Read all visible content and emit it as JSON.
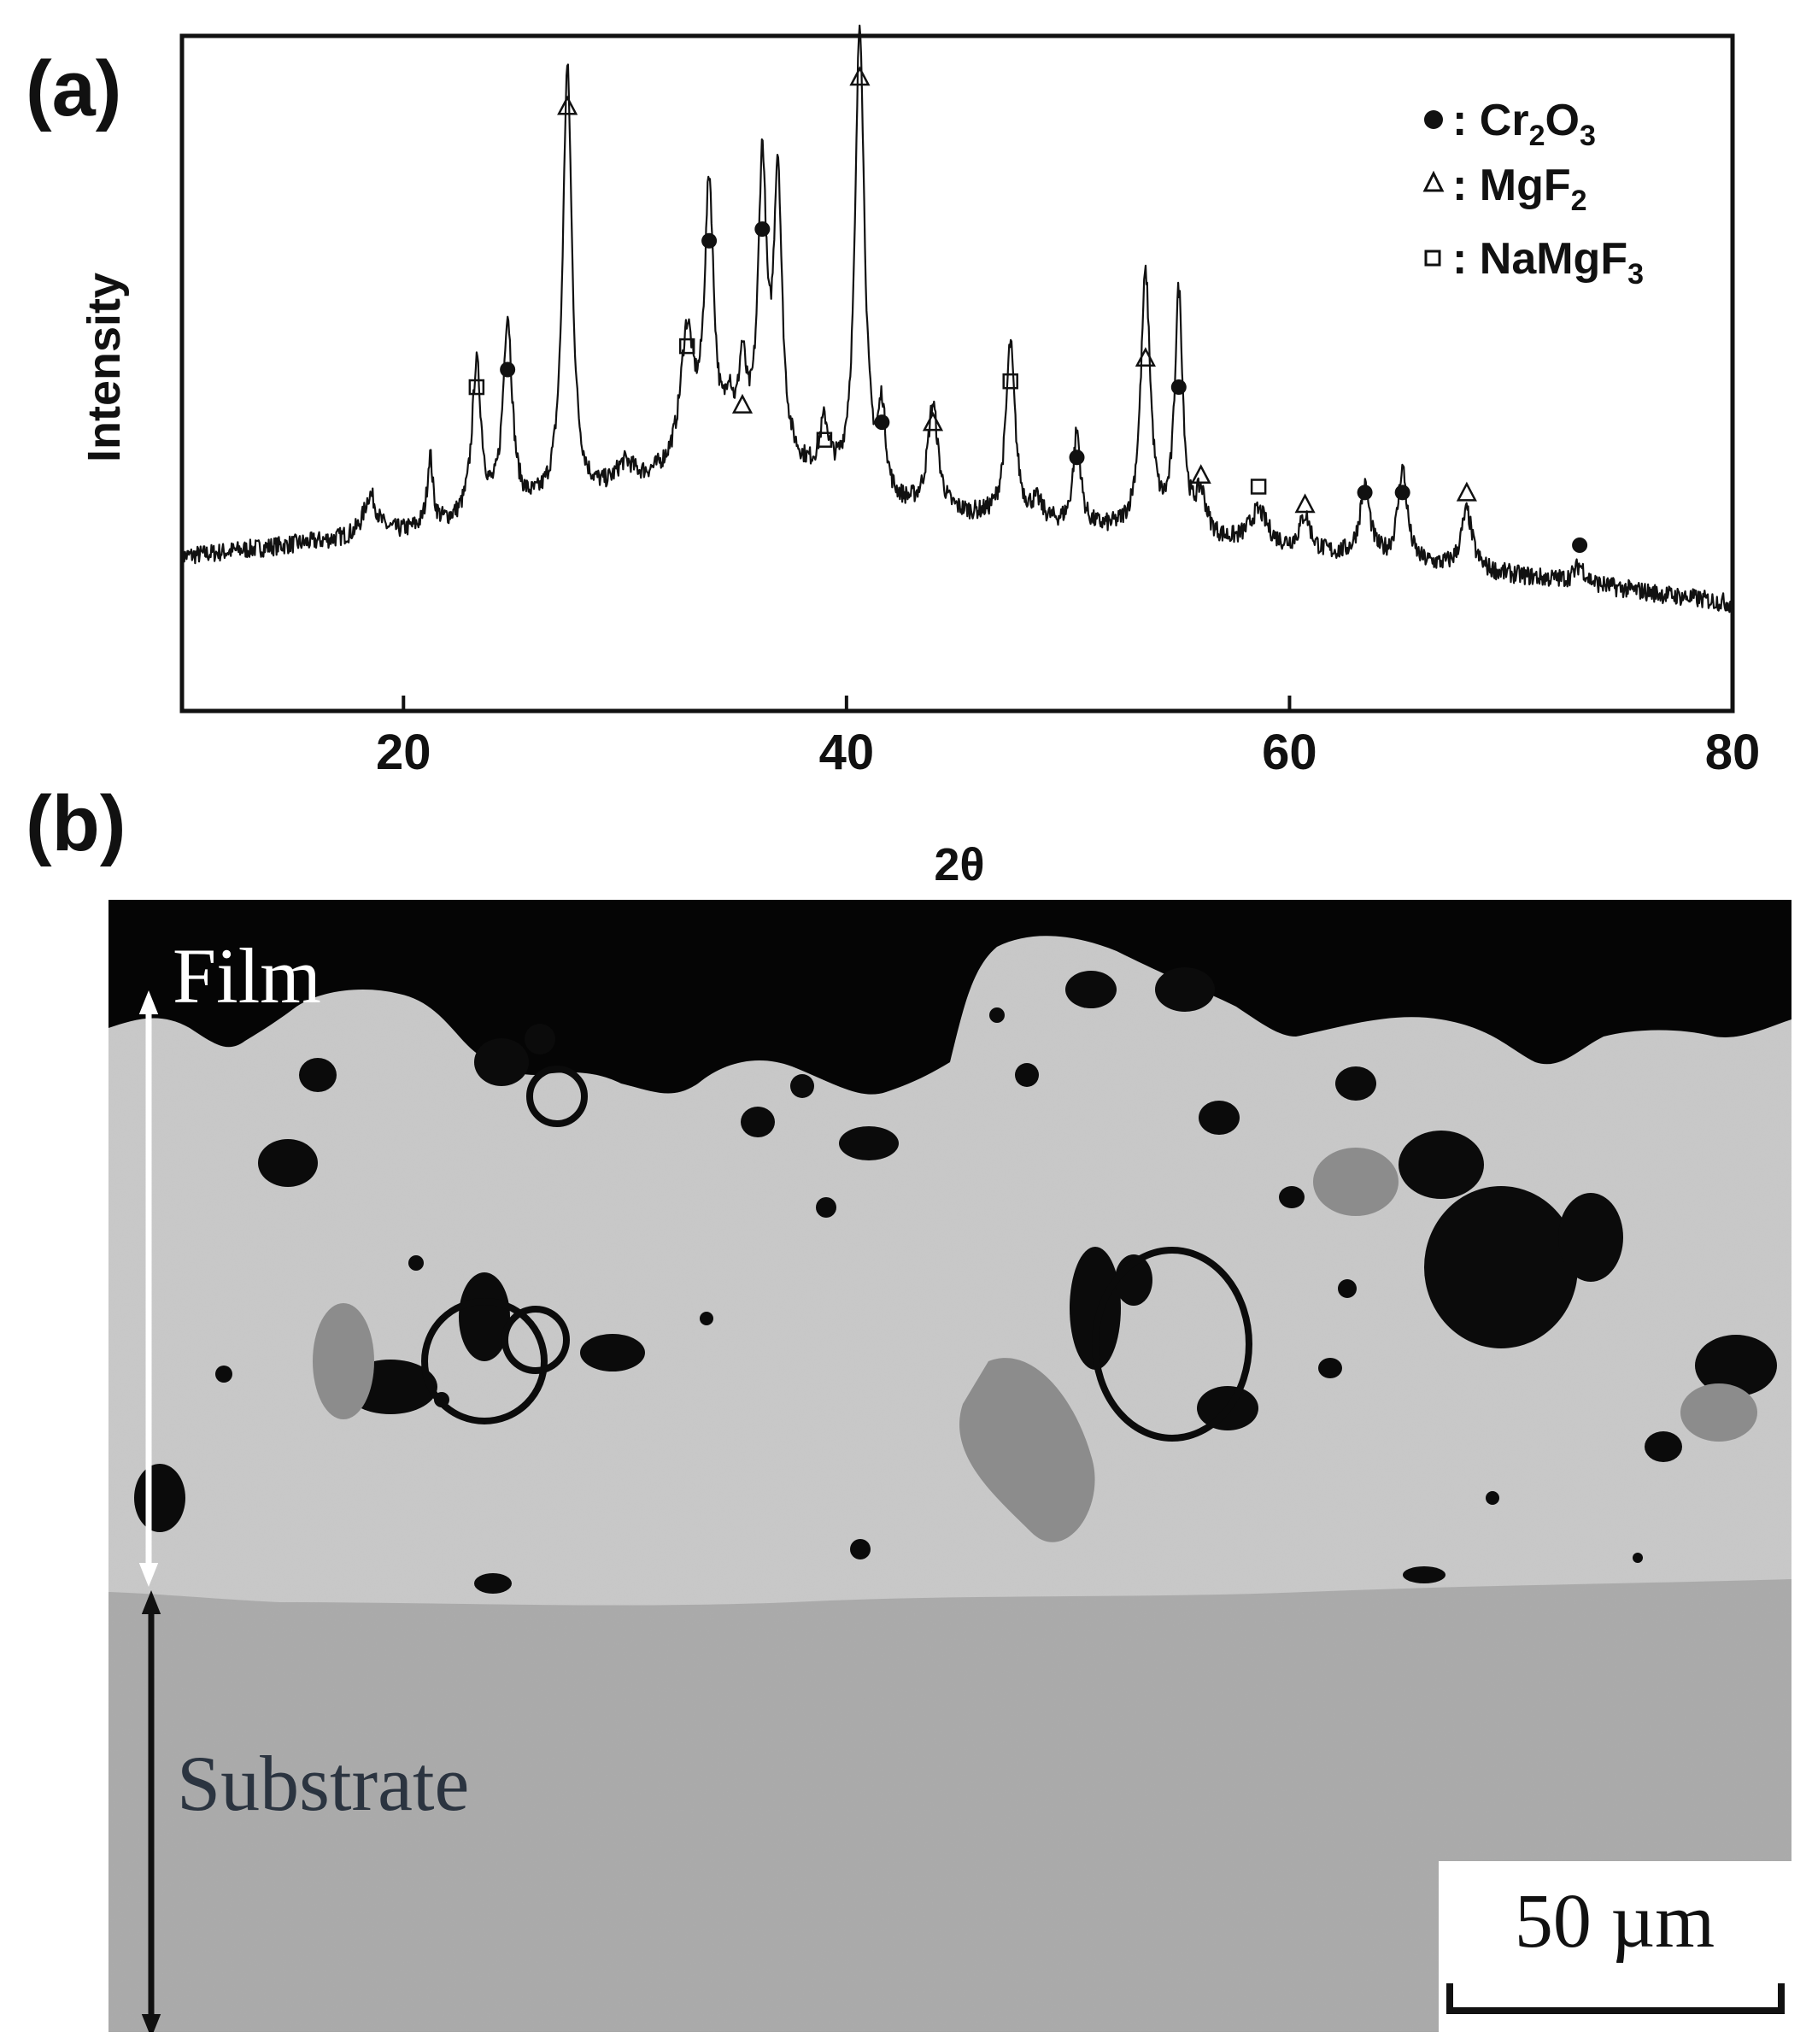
{
  "panels": {
    "a_label": "(a)",
    "b_label": "(b)"
  },
  "chart_data": {
    "type": "line",
    "title": "",
    "xlabel": "2θ",
    "ylabel": "Intensity",
    "xlim": [
      10,
      80
    ],
    "xticks": [
      20,
      40,
      60,
      80
    ],
    "ylim": [
      0,
      100
    ],
    "grid": false,
    "legend_position": "top-right",
    "legend": [
      {
        "marker": "circle-filled",
        "label_main": "Cr",
        "label_sub1": "2",
        "label_mid": "O",
        "label_sub2": "3",
        "prefix": ": "
      },
      {
        "marker": "triangle-open",
        "label_main": "MgF",
        "label_sub1": "2",
        "label_mid": "",
        "label_sub2": "",
        "prefix": ": "
      },
      {
        "marker": "square-open",
        "label_main": "NaMgF",
        "label_sub1": "3",
        "label_mid": "",
        "label_sub2": "",
        "prefix": ": "
      }
    ],
    "baseline": [
      [
        10,
        18
      ],
      [
        15,
        20
      ],
      [
        20,
        22
      ],
      [
        25,
        25
      ],
      [
        30,
        29
      ],
      [
        33,
        33
      ],
      [
        36,
        35
      ],
      [
        39,
        30
      ],
      [
        42,
        26
      ],
      [
        47,
        24
      ],
      [
        52,
        22
      ],
      [
        57,
        20
      ],
      [
        62,
        18
      ],
      [
        67,
        16
      ],
      [
        72,
        14
      ],
      [
        80,
        10
      ]
    ],
    "peaks": [
      {
        "x": 18.5,
        "h": 7,
        "w": 0.35
      },
      {
        "x": 21.2,
        "h": 12,
        "w": 0.15
      },
      {
        "x": 23.3,
        "h": 26,
        "w": 0.25
      },
      {
        "x": 24.7,
        "h": 33,
        "w": 0.25
      },
      {
        "x": 27.4,
        "h": 74,
        "w": 0.25
      },
      {
        "x": 30.0,
        "h": 4,
        "w": 0.5
      },
      {
        "x": 32.8,
        "h": 22,
        "w": 0.35
      },
      {
        "x": 33.8,
        "h": 46,
        "w": 0.25
      },
      {
        "x": 34.7,
        "h": 8,
        "w": 0.2
      },
      {
        "x": 35.3,
        "h": 14,
        "w": 0.2
      },
      {
        "x": 36.2,
        "h": 48,
        "w": 0.22
      },
      {
        "x": 36.9,
        "h": 48,
        "w": 0.22
      },
      {
        "x": 39.0,
        "h": 9,
        "w": 0.25
      },
      {
        "x": 40.6,
        "h": 80,
        "w": 0.25
      },
      {
        "x": 41.6,
        "h": 14,
        "w": 0.2
      },
      {
        "x": 43.9,
        "h": 18,
        "w": 0.28
      },
      {
        "x": 47.4,
        "h": 30,
        "w": 0.25
      },
      {
        "x": 48.6,
        "h": 3,
        "w": 0.3
      },
      {
        "x": 50.4,
        "h": 16,
        "w": 0.2
      },
      {
        "x": 53.5,
        "h": 44,
        "w": 0.26
      },
      {
        "x": 55.0,
        "h": 41,
        "w": 0.22
      },
      {
        "x": 56.0,
        "h": 7,
        "w": 0.3
      },
      {
        "x": 58.6,
        "h": 6,
        "w": 0.5
      },
      {
        "x": 60.7,
        "h": 6,
        "w": 0.3
      },
      {
        "x": 63.4,
        "h": 12,
        "w": 0.28
      },
      {
        "x": 65.1,
        "h": 16,
        "w": 0.25
      },
      {
        "x": 68.0,
        "h": 10,
        "w": 0.3
      },
      {
        "x": 73.1,
        "h": 3,
        "w": 0.3
      }
    ],
    "annotations": [
      {
        "x": 24.7,
        "y": 50,
        "marker": "circle-filled"
      },
      {
        "x": 27.4,
        "y": 95,
        "marker": "triangle-open"
      },
      {
        "x": 33.8,
        "y": 72,
        "marker": "circle-filled"
      },
      {
        "x": 36.2,
        "y": 74,
        "marker": "circle-filled"
      },
      {
        "x": 40.6,
        "y": 100,
        "marker": "triangle-open"
      },
      {
        "x": 41.6,
        "y": 41,
        "marker": "circle-filled"
      },
      {
        "x": 50.4,
        "y": 35,
        "marker": "circle-filled"
      },
      {
        "x": 55.0,
        "y": 47,
        "marker": "circle-filled"
      },
      {
        "x": 63.4,
        "y": 29,
        "marker": "circle-filled"
      },
      {
        "x": 65.1,
        "y": 29,
        "marker": "circle-filled"
      },
      {
        "x": 73.1,
        "y": 20,
        "marker": "circle-filled"
      },
      {
        "x": 35.3,
        "y": 44,
        "marker": "triangle-open"
      },
      {
        "x": 43.9,
        "y": 41,
        "marker": "triangle-open"
      },
      {
        "x": 53.5,
        "y": 52,
        "marker": "triangle-open"
      },
      {
        "x": 56.0,
        "y": 32,
        "marker": "triangle-open"
      },
      {
        "x": 60.7,
        "y": 27,
        "marker": "triangle-open"
      },
      {
        "x": 68.0,
        "y": 29,
        "marker": "triangle-open"
      },
      {
        "x": 23.3,
        "y": 47,
        "marker": "square-open"
      },
      {
        "x": 32.8,
        "y": 54,
        "marker": "square-open"
      },
      {
        "x": 39.0,
        "y": 38,
        "marker": "square-open"
      },
      {
        "x": 47.4,
        "y": 48,
        "marker": "square-open"
      },
      {
        "x": 58.6,
        "y": 30,
        "marker": "square-open"
      }
    ],
    "colors": {
      "line": "#111111",
      "axes": "#111111"
    }
  },
  "sem": {
    "film_label": "Film",
    "substrate_label": "Substrate",
    "scale_bar_label": "50 µm",
    "colors": {
      "background": "#050505",
      "film": "#c9c9c9",
      "substrate": "#a9a9a9",
      "arrow_film": "#ffffff",
      "arrow_substrate": "#111111"
    }
  }
}
